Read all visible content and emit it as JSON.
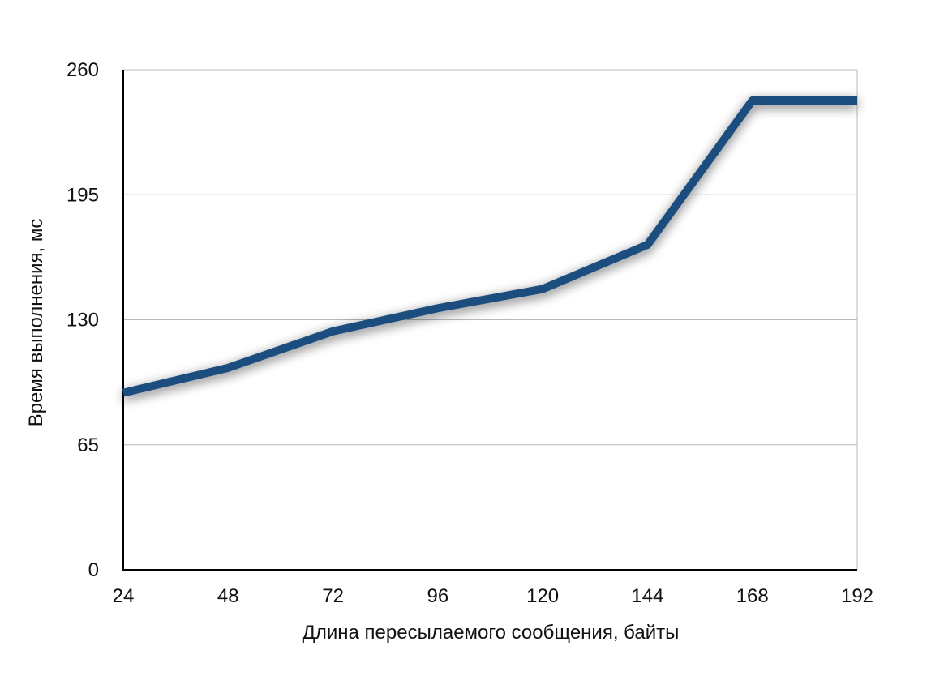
{
  "chart_data": {
    "type": "line",
    "title": "",
    "xlabel": "Длина пересылаемого сообщения, байты",
    "ylabel": "Время выполнения, мс",
    "x": [
      24,
      48,
      72,
      96,
      120,
      144,
      168,
      192
    ],
    "x_tick_labels": [
      "24",
      "48",
      "72",
      "96",
      "120",
      "144",
      "168",
      "192"
    ],
    "y_ticks": [
      0,
      65,
      130,
      195,
      260
    ],
    "y_tick_labels": [
      "0",
      "65",
      "130",
      "195",
      "260"
    ],
    "ylim": [
      0,
      260
    ],
    "xlim": [
      24,
      192
    ],
    "grid": true,
    "legend": "none",
    "series": [
      {
        "values": [
          92,
          105,
          124,
          136,
          146,
          169,
          244,
          244
        ],
        "color": "#1f4e7f"
      }
    ]
  }
}
